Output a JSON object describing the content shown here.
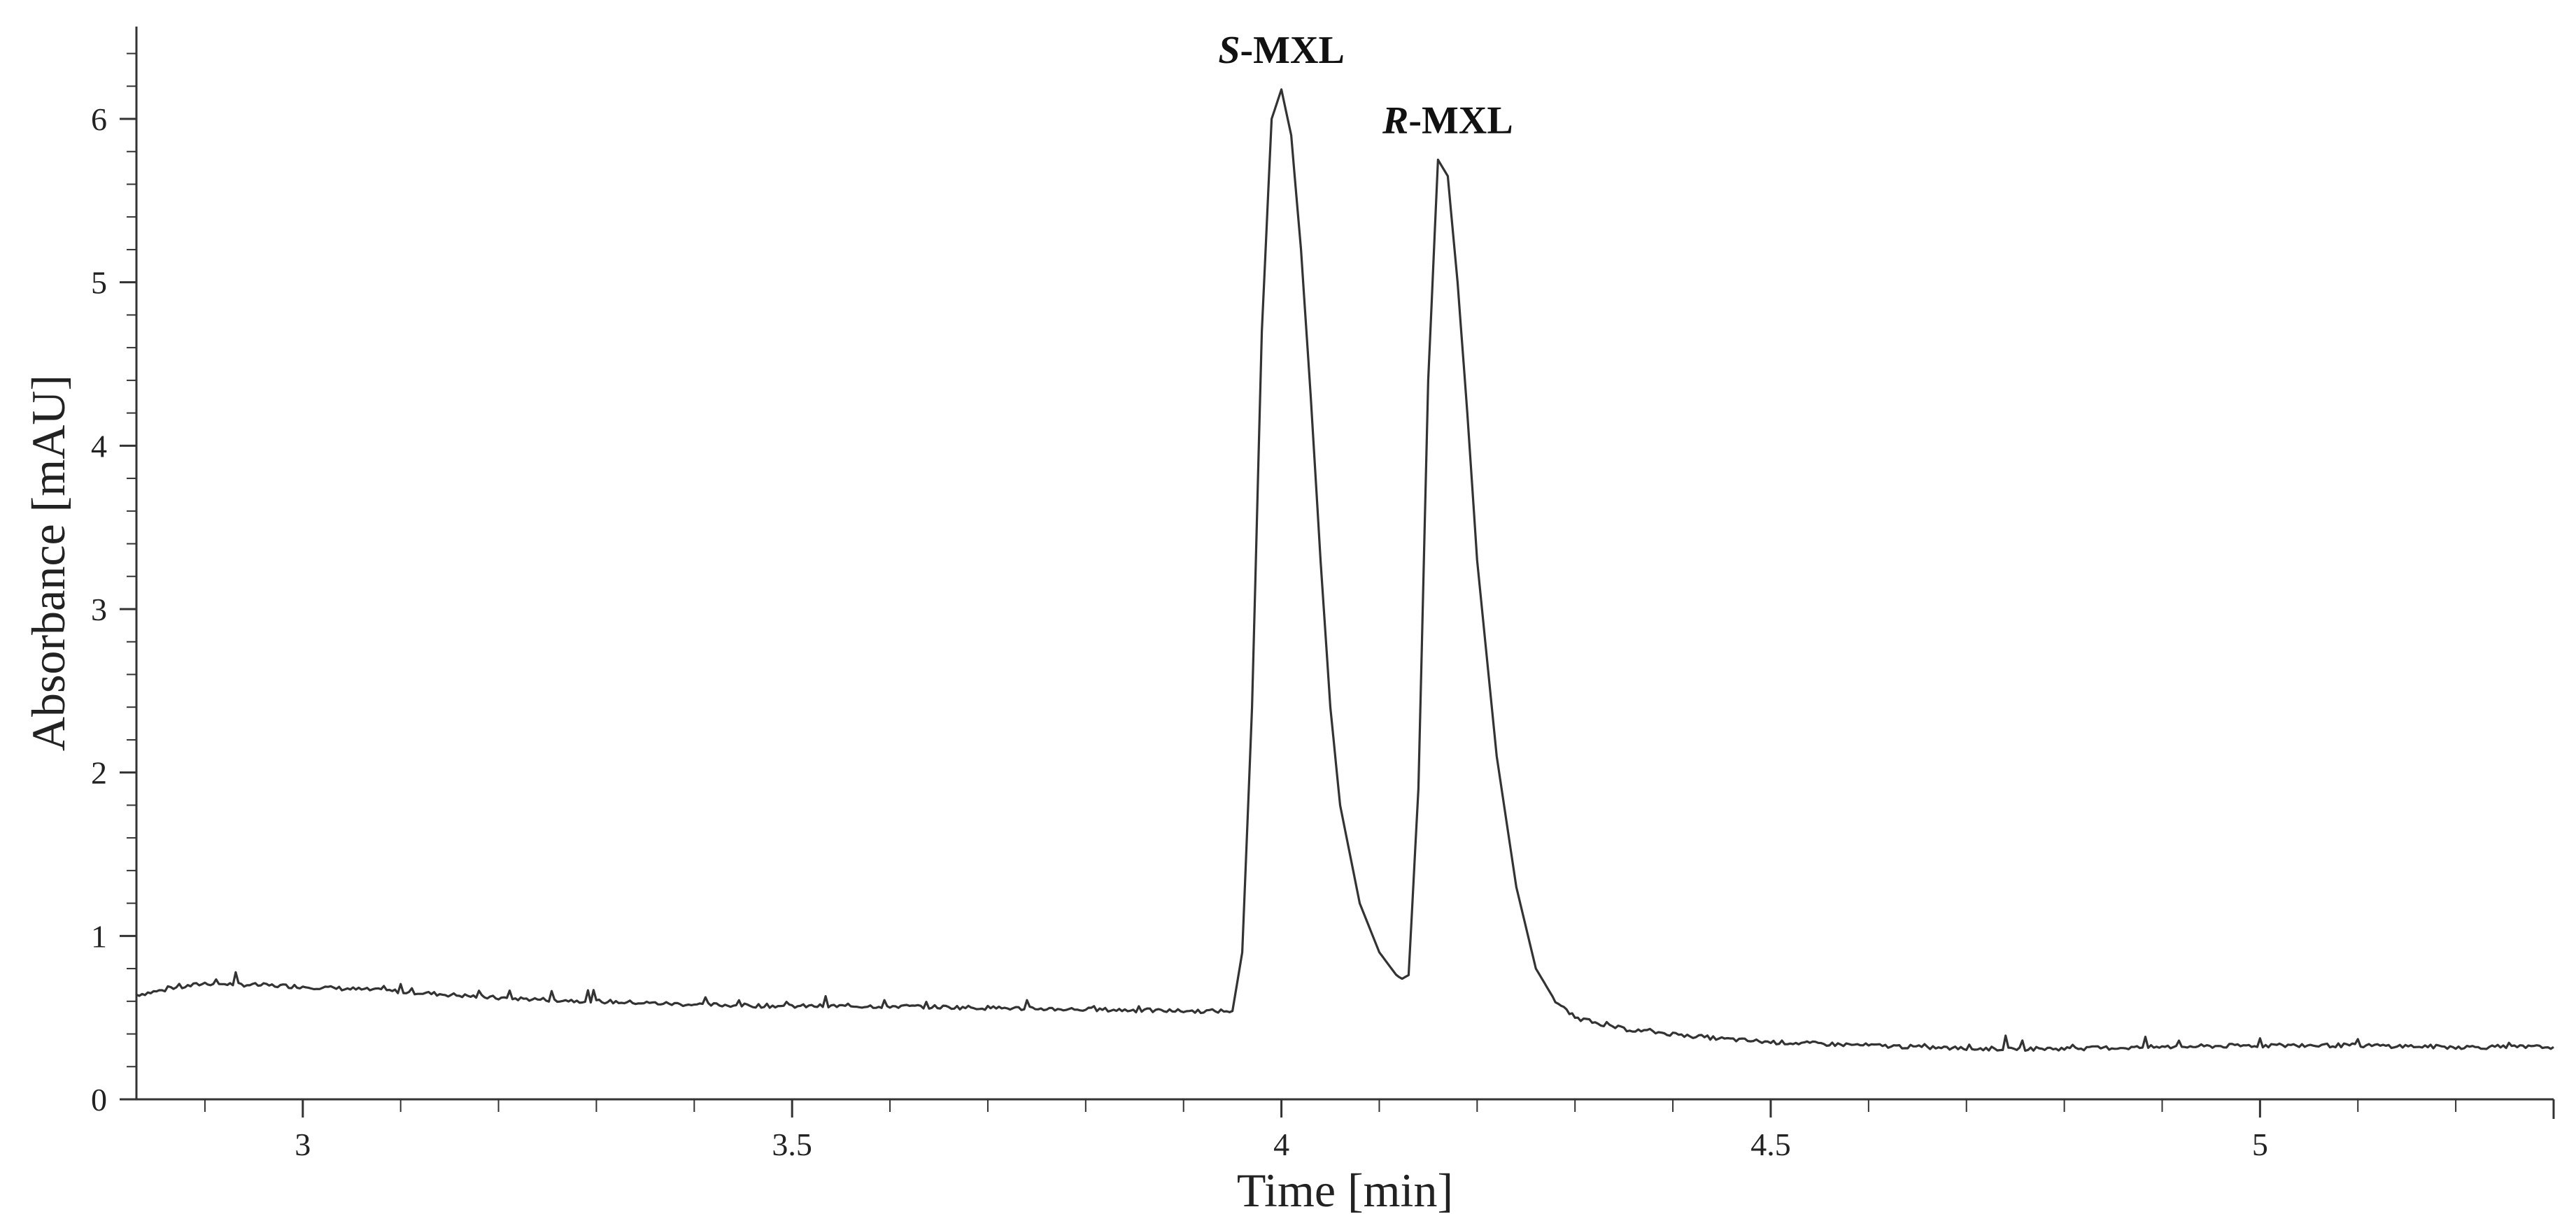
{
  "chart_data": {
    "type": "line",
    "title": "",
    "xlabel": "Time [min]",
    "ylabel": "Absorbance [mAU]",
    "xlim": [
      2.83,
      5.3
    ],
    "ylim": [
      0,
      6.5
    ],
    "x_ticks": [
      3,
      3.5,
      4,
      4.5,
      5
    ],
    "x_tick_labels": [
      "3",
      "3.5",
      "4",
      "4.5",
      "5"
    ],
    "y_ticks": [
      0,
      1,
      2,
      3,
      4,
      5,
      6
    ],
    "y_tick_labels": [
      "0",
      "1",
      "2",
      "3",
      "4",
      "5",
      "6"
    ],
    "grid": false,
    "series": [
      {
        "color": "#333333",
        "x": [
          2.83,
          2.9,
          3.0,
          3.1,
          3.2,
          3.3,
          3.4,
          3.5,
          3.6,
          3.7,
          3.8,
          3.9,
          3.95,
          3.96,
          3.97,
          3.98,
          3.99,
          4.0,
          4.01,
          4.02,
          4.03,
          4.04,
          4.05,
          4.06,
          4.08,
          4.1,
          4.12,
          4.13,
          4.14,
          4.15,
          4.16,
          4.17,
          4.18,
          4.19,
          4.2,
          4.22,
          4.24,
          4.26,
          4.28,
          4.3,
          4.35,
          4.4,
          4.45,
          4.5,
          4.6,
          4.7,
          4.8,
          4.9,
          5.0,
          5.1,
          5.2,
          5.3
        ],
        "y": [
          0.64,
          0.71,
          0.69,
          0.66,
          0.62,
          0.6,
          0.58,
          0.57,
          0.57,
          0.56,
          0.55,
          0.54,
          0.54,
          0.9,
          2.4,
          4.7,
          6.0,
          6.18,
          5.9,
          5.2,
          4.3,
          3.3,
          2.4,
          1.8,
          1.2,
          0.9,
          0.74,
          0.76,
          1.9,
          4.4,
          5.75,
          5.65,
          5.0,
          4.2,
          3.3,
          2.1,
          1.3,
          0.8,
          0.6,
          0.5,
          0.43,
          0.4,
          0.37,
          0.35,
          0.33,
          0.31,
          0.31,
          0.32,
          0.33,
          0.33,
          0.32,
          0.32
        ]
      }
    ],
    "annotations": [
      {
        "text_italic": "S",
        "text_rest": "-MXL",
        "x": 4.0,
        "y": 6.18
      },
      {
        "text_italic": "R",
        "text_rest": "-MXL",
        "x": 4.17,
        "y": 5.75
      }
    ]
  }
}
